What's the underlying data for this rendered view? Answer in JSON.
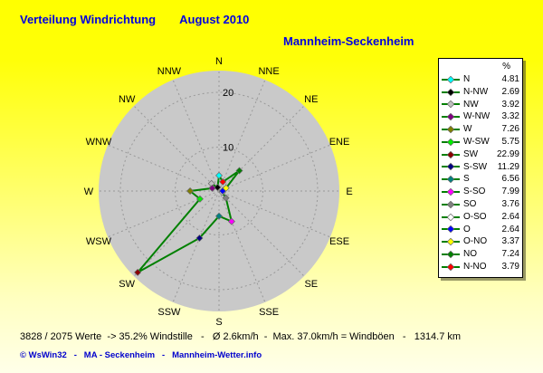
{
  "header": {
    "title": "Verteilung Windrichtung",
    "period": "August 2010",
    "station": "Mannheim-Seckenheim"
  },
  "chart_data": {
    "type": "line",
    "subtype": "polar-wind-rose",
    "title": "Verteilung Windrichtung August 2010 - Mannheim-Seckenheim",
    "unit": "%",
    "radial_ticks": [
      10,
      20
    ],
    "radial_max_visible": 24,
    "legend_header": "%",
    "legend_position": "right",
    "grid": "dashed",
    "line_color": "#008000",
    "panel_color": "#c9c9c9",
    "grid_color": "#999999",
    "compass": [
      {
        "label": "N",
        "angle": 0
      },
      {
        "label": "NNE",
        "angle": 22.5
      },
      {
        "label": "NE",
        "angle": 45
      },
      {
        "label": "ENE",
        "angle": 67.5
      },
      {
        "label": "E",
        "angle": 90
      },
      {
        "label": "ESE",
        "angle": 112.5
      },
      {
        "label": "SE",
        "angle": 135
      },
      {
        "label": "SSE",
        "angle": 157.5
      },
      {
        "label": "S",
        "angle": 180
      },
      {
        "label": "SSW",
        "angle": 202.5
      },
      {
        "label": "SW",
        "angle": 225
      },
      {
        "label": "WSW",
        "angle": 247.5
      },
      {
        "label": "W",
        "angle": 270
      },
      {
        "label": "WNW",
        "angle": 292.5
      },
      {
        "label": "NW",
        "angle": 315
      },
      {
        "label": "NNW",
        "angle": 337.5
      }
    ],
    "series": [
      {
        "name": "N",
        "angle": 0,
        "value": 4.81,
        "color": "#00ffff"
      },
      {
        "name": "N-NW",
        "angle": 337.5,
        "value": 2.69,
        "color": "#000000"
      },
      {
        "name": "NW",
        "angle": 315,
        "value": 3.92,
        "color": "#c0c0c0"
      },
      {
        "name": "W-NW",
        "angle": 292.5,
        "value": 3.32,
        "color": "#800080"
      },
      {
        "name": "W",
        "angle": 270,
        "value": 7.26,
        "color": "#808000"
      },
      {
        "name": "W-SW",
        "angle": 247.5,
        "value": 5.75,
        "color": "#00ee00"
      },
      {
        "name": "SW",
        "angle": 225,
        "value": 22.99,
        "color": "#8b0000"
      },
      {
        "name": "S-SW",
        "angle": 202.5,
        "value": 11.29,
        "color": "#000080"
      },
      {
        "name": "S",
        "angle": 180,
        "value": 6.56,
        "color": "#008080"
      },
      {
        "name": "S-SO",
        "angle": 157.5,
        "value": 7.99,
        "color": "#ff00ff"
      },
      {
        "name": "SO",
        "angle": 135,
        "value": 3.76,
        "color": "#808080"
      },
      {
        "name": "O-SO",
        "angle": 112.5,
        "value": 2.64,
        "color": "#ffffff"
      },
      {
        "name": "O",
        "angle": 90,
        "value": 2.64,
        "color": "#0000ff"
      },
      {
        "name": "O-NO",
        "angle": 67.5,
        "value": 3.37,
        "color": "#ffff00"
      },
      {
        "name": "NO",
        "angle": 45,
        "value": 7.24,
        "color": "#008000"
      },
      {
        "name": "N-NO",
        "angle": 22.5,
        "value": 3.79,
        "color": "#ff0000"
      }
    ]
  },
  "footer": {
    "status": "3828 / 2075 Werte  -> 35.2% Windstille   -   Ø 2.6km/h  -  Max. 37.0km/h = Windböen   -   1314.7 km",
    "credit": "© WsWin32   -   MA - Seckenheim   -   Mannheim-Wetter.info"
  }
}
